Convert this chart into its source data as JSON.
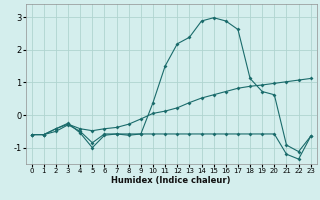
{
  "xlabel": "Humidex (Indice chaleur)",
  "ylabel": "",
  "bg_color": "#d4eeed",
  "grid_color": "#b0d4d0",
  "line_color": "#1a6b6b",
  "xlim": [
    -0.5,
    23.5
  ],
  "ylim": [
    -1.5,
    3.4
  ],
  "xticks": [
    0,
    1,
    2,
    3,
    4,
    5,
    6,
    7,
    8,
    9,
    10,
    11,
    12,
    13,
    14,
    15,
    16,
    17,
    18,
    19,
    20,
    21,
    22,
    23
  ],
  "yticks": [
    -1,
    0,
    1,
    2,
    3
  ],
  "line1_x": [
    0,
    1,
    2,
    3,
    4,
    5,
    6,
    7,
    8,
    9,
    10,
    11,
    12,
    13,
    14,
    15,
    16,
    17,
    18,
    19,
    20,
    21,
    22,
    23
  ],
  "line1_y": [
    -0.6,
    -0.6,
    -0.5,
    -0.3,
    -0.5,
    -0.85,
    -0.58,
    -0.58,
    -0.58,
    -0.58,
    -0.58,
    -0.58,
    -0.58,
    -0.58,
    -0.58,
    -0.58,
    -0.58,
    -0.58,
    -0.58,
    -0.58,
    -0.58,
    -1.2,
    -1.35,
    -0.65
  ],
  "line2_x": [
    0,
    1,
    2,
    3,
    4,
    5,
    6,
    7,
    8,
    9,
    10,
    11,
    12,
    13,
    14,
    15,
    16,
    17,
    18,
    19,
    20,
    21,
    22,
    23
  ],
  "line2_y": [
    -0.6,
    -0.6,
    -0.42,
    -0.28,
    -0.42,
    -0.48,
    -0.42,
    -0.38,
    -0.28,
    -0.12,
    0.05,
    0.12,
    0.22,
    0.38,
    0.52,
    0.62,
    0.72,
    0.82,
    0.88,
    0.92,
    0.97,
    1.02,
    1.07,
    1.12
  ],
  "line3_x": [
    0,
    1,
    2,
    3,
    4,
    5,
    6,
    7,
    8,
    9,
    10,
    11,
    12,
    13,
    14,
    15,
    16,
    17,
    18,
    19,
    20,
    21,
    22,
    23
  ],
  "line3_y": [
    -0.6,
    -0.6,
    -0.42,
    -0.25,
    -0.55,
    -1.0,
    -0.62,
    -0.58,
    -0.62,
    -0.58,
    0.38,
    1.5,
    2.18,
    2.38,
    2.88,
    2.98,
    2.88,
    2.62,
    1.12,
    0.72,
    0.62,
    -0.92,
    -1.12,
    -0.65
  ]
}
